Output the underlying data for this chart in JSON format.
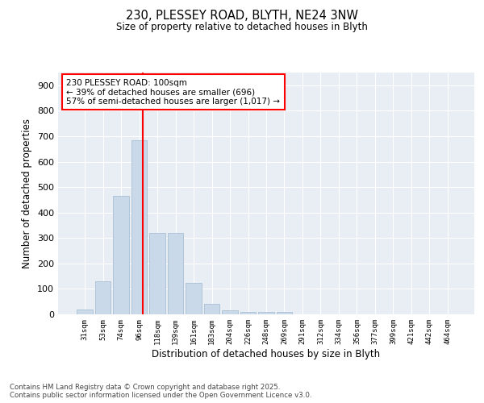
{
  "title_line1": "230, PLESSEY ROAD, BLYTH, NE24 3NW",
  "title_line2": "Size of property relative to detached houses in Blyth",
  "xlabel": "Distribution of detached houses by size in Blyth",
  "ylabel": "Number of detached properties",
  "bar_color": "#c9d9ea",
  "bar_edge_color": "#a0b8d0",
  "vline_color": "red",
  "vline_x_index": 3.18,
  "annotation_text": "230 PLESSEY ROAD: 100sqm\n← 39% of detached houses are smaller (696)\n57% of semi-detached houses are larger (1,017) →",
  "annotation_box_color": "white",
  "annotation_box_edge": "red",
  "categories": [
    "31sqm",
    "53sqm",
    "74sqm",
    "96sqm",
    "118sqm",
    "139sqm",
    "161sqm",
    "183sqm",
    "204sqm",
    "226sqm",
    "248sqm",
    "269sqm",
    "291sqm",
    "312sqm",
    "334sqm",
    "356sqm",
    "377sqm",
    "399sqm",
    "421sqm",
    "442sqm",
    "464sqm"
  ],
  "values": [
    20,
    130,
    465,
    685,
    320,
    320,
    125,
    40,
    15,
    10,
    10,
    10,
    0,
    0,
    0,
    0,
    0,
    0,
    0,
    0,
    0
  ],
  "ylim": [
    0,
    950
  ],
  "yticks": [
    0,
    100,
    200,
    300,
    400,
    500,
    600,
    700,
    800,
    900
  ],
  "footer": "Contains HM Land Registry data © Crown copyright and database right 2025.\nContains public sector information licensed under the Open Government Licence v3.0.",
  "plot_bg_color": "#e8eef4",
  "grid_color": "#ffffff",
  "fig_bg_color": "#ffffff"
}
